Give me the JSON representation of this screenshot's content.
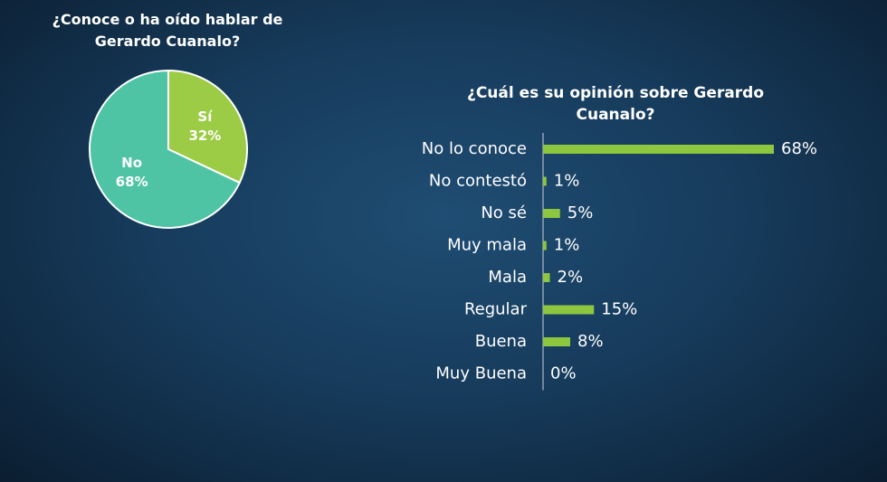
{
  "chart_data": [
    {
      "type": "pie",
      "title": "¿Conoce o ha oído hablar de Gerardo Cuanalo?",
      "categories": [
        "Sí",
        "No"
      ],
      "values": [
        32,
        68
      ],
      "value_labels": [
        "32%",
        "68%"
      ],
      "colors": [
        "#9ccc45",
        "#4fc4a4"
      ]
    },
    {
      "type": "hbar",
      "title": "¿Cuál es su opinión sobre Gerardo Cuanalo?",
      "categories": [
        "No lo conoce",
        "No contestó",
        "No sé",
        "Muy mala",
        "Mala",
        "Regular",
        "Buena",
        "Muy Buena"
      ],
      "values": [
        68,
        1,
        5,
        1,
        2,
        15,
        8,
        0
      ],
      "value_labels": [
        "68%",
        "1%",
        "5%",
        "1%",
        "2%",
        "15%",
        "8%",
        "0%"
      ],
      "color": "#8dc63f"
    }
  ]
}
